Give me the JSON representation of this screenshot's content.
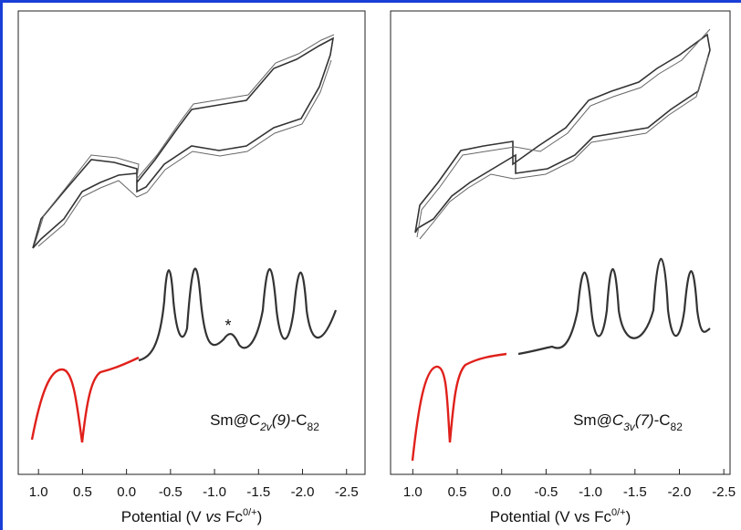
{
  "chart_data": [
    {
      "type": "line",
      "xlim": [
        1.23,
        -2.71
      ],
      "xticks": [
        {
          "value": 1.0,
          "label": "1.0"
        },
        {
          "value": 0.5,
          "label": "0.5"
        },
        {
          "value": 0.0,
          "label": "0.0"
        },
        {
          "value": -0.5,
          "label": "-0.5"
        },
        {
          "value": -1.0,
          "label": "-1.0"
        },
        {
          "value": -1.5,
          "label": "-1.5"
        },
        {
          "value": -2.0,
          "label": "-2.0"
        },
        {
          "value": -2.5,
          "label": "-2.5"
        }
      ],
      "xlabel_parts": [
        "Potential (V ",
        "vs",
        " Fc",
        "0/+",
        ")"
      ],
      "compound_parts": [
        "Sm@",
        "C",
        "2v",
        "(9)",
        "-C",
        "82"
      ],
      "annotation": "*"
    },
    {
      "type": "line",
      "xlim": [
        1.25,
        -2.57
      ],
      "xticks": [
        {
          "value": 1.0,
          "label": "1.0"
        },
        {
          "value": 0.5,
          "label": "0.5"
        },
        {
          "value": 0.0,
          "label": "0.0"
        },
        {
          "value": -0.5,
          "label": "-0.5"
        },
        {
          "value": -1.0,
          "label": "-1.0"
        },
        {
          "value": -1.5,
          "label": "-1.5"
        },
        {
          "value": -2.0,
          "label": "-2.0"
        },
        {
          "value": -2.5,
          "label": "-2.5"
        }
      ],
      "xlabel_parts": [
        "Potential (V vs Fc",
        "0/+",
        ")"
      ],
      "compound_parts": [
        "Sm@",
        "C",
        "3v",
        "(7)",
        "-C",
        "82"
      ]
    }
  ]
}
